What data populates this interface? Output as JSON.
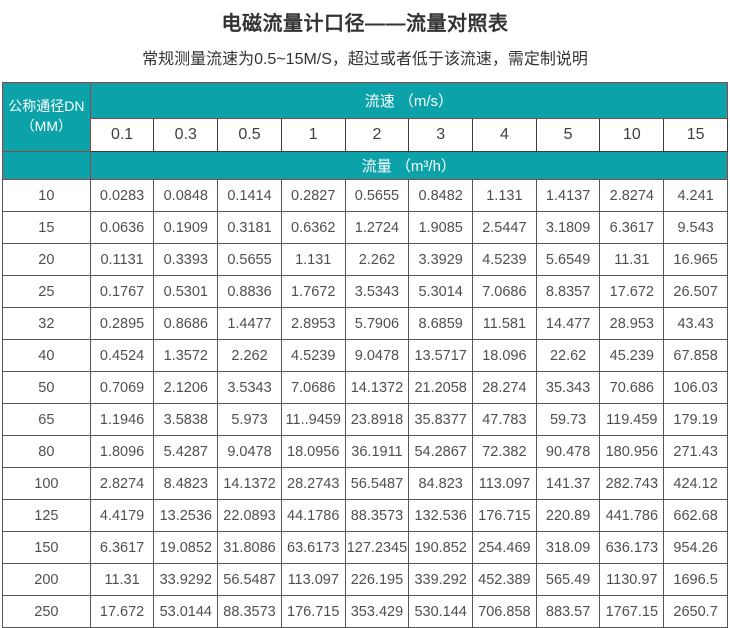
{
  "page": {
    "title": "电磁流量计口径——流量对照表",
    "subtitle": "常规测量流速为0.5~15M/S，超过或者低于该流速，需定制说明"
  },
  "table": {
    "corner_line1": "公称通径DN",
    "corner_line2": "（MM）",
    "velocity_header": "流速 （m/s）",
    "flow_header": "流量 （m³/h）",
    "velocities": [
      "0.1",
      "0.3",
      "0.5",
      "1",
      "2",
      "3",
      "4",
      "5",
      "10",
      "15"
    ],
    "rows": [
      {
        "dn": "10",
        "values": [
          "0.0283",
          "0.0848",
          "0.1414",
          "0.2827",
          "0.5655",
          "0.8482",
          "1.131",
          "1.4137",
          "2.8274",
          "4.241"
        ]
      },
      {
        "dn": "15",
        "values": [
          "0.0636",
          "0.1909",
          "0.3181",
          "0.6362",
          "1.2724",
          "1.9085",
          "2.5447",
          "3.1809",
          "6.3617",
          "9.543"
        ]
      },
      {
        "dn": "20",
        "values": [
          "0.1131",
          "0.3393",
          "0.5655",
          "1.131",
          "2.262",
          "3.3929",
          "4.5239",
          "5.6549",
          "11.31",
          "16.965"
        ]
      },
      {
        "dn": "25",
        "values": [
          "0.1767",
          "0.5301",
          "0.8836",
          "1.7672",
          "3.5343",
          "5.3014",
          "7.0686",
          "8.8357",
          "17.672",
          "26.507"
        ]
      },
      {
        "dn": "32",
        "values": [
          "0.2895",
          "0.8686",
          "1.4477",
          "2.8953",
          "5.7906",
          "8.6859",
          "11.581",
          "14.477",
          "28.953",
          "43.43"
        ]
      },
      {
        "dn": "40",
        "values": [
          "0.4524",
          "1.3572",
          "2.262",
          "4.5239",
          "9.0478",
          "13.5717",
          "18.096",
          "22.62",
          "45.239",
          "67.858"
        ]
      },
      {
        "dn": "50",
        "values": [
          "0.7069",
          "2.1206",
          "3.5343",
          "7.0686",
          "14.1372",
          "21.2058",
          "28.274",
          "35.343",
          "70.686",
          "106.03"
        ]
      },
      {
        "dn": "65",
        "values": [
          "1.1946",
          "3.5838",
          "5.973",
          "11..9459",
          "23.8918",
          "35.8377",
          "47.783",
          "59.73",
          "119.459",
          "179.19"
        ]
      },
      {
        "dn": "80",
        "values": [
          "1.8096",
          "5.4287",
          "9.0478",
          "18.0956",
          "36.1911",
          "54.2867",
          "72.382",
          "90.478",
          "180.956",
          "271.43"
        ]
      },
      {
        "dn": "100",
        "values": [
          "2.8274",
          "8.4823",
          "14.1372",
          "28.2743",
          "56.5487",
          "84.823",
          "113.097",
          "141.37",
          "282.743",
          "424.12"
        ]
      },
      {
        "dn": "125",
        "values": [
          "4.4179",
          "13.2536",
          "22.0893",
          "44.1786",
          "88.3573",
          "132.536",
          "176.715",
          "220.89",
          "441.786",
          "662.68"
        ]
      },
      {
        "dn": "150",
        "values": [
          "6.3617",
          "19.0852",
          "31.8086",
          "63.6173",
          "127.2345",
          "190.852",
          "254.469",
          "318.09",
          "636.173",
          "954.26"
        ]
      },
      {
        "dn": "200",
        "values": [
          "11.31",
          "33.9292",
          "56.5487",
          "113.097",
          "226.195",
          "339.292",
          "452.389",
          "565.49",
          "1130.97",
          "1696.5"
        ]
      },
      {
        "dn": "250",
        "values": [
          "17.672",
          "53.0144",
          "88.3573",
          "176.715",
          "353.429",
          "530.144",
          "706.858",
          "883.57",
          "1767.15",
          "2650.7"
        ]
      }
    ],
    "accent_color": "#0ba2aa",
    "header_border_color": "#934545"
  }
}
